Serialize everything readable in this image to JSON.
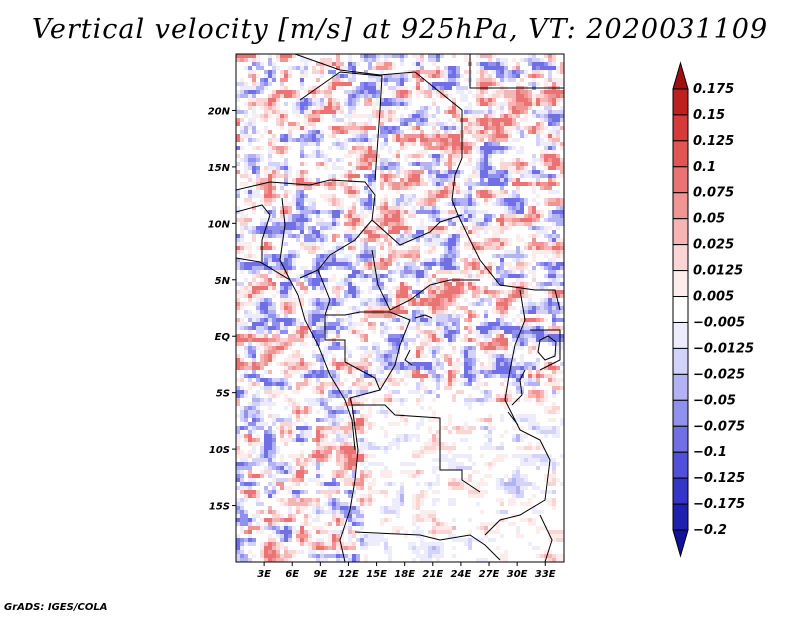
{
  "title": "Vertical velocity [m/s] at 925hPa, VT: 2020031109",
  "credit": "GrADS: IGES/COLA",
  "map": {
    "lon_range": [
      0,
      35
    ],
    "lat_range": [
      -20,
      25
    ],
    "x_ticks": [
      {
        "lon": 3,
        "label": "3E"
      },
      {
        "lon": 6,
        "label": "6E"
      },
      {
        "lon": 9,
        "label": "9E"
      },
      {
        "lon": 12,
        "label": "12E"
      },
      {
        "lon": 15,
        "label": "15E"
      },
      {
        "lon": 18,
        "label": "18E"
      },
      {
        "lon": 21,
        "label": "21E"
      },
      {
        "lon": 24,
        "label": "24E"
      },
      {
        "lon": 27,
        "label": "27E"
      },
      {
        "lon": 30,
        "label": "30E"
      },
      {
        "lon": 33,
        "label": "33E"
      }
    ],
    "y_ticks": [
      {
        "lat": 20,
        "label": "20N"
      },
      {
        "lat": 15,
        "label": "15N"
      },
      {
        "lat": 10,
        "label": "10N"
      },
      {
        "lat": 5,
        "label": "5N"
      },
      {
        "lat": 0,
        "label": "EQ"
      },
      {
        "lat": -5,
        "label": "5S"
      },
      {
        "lat": -10,
        "label": "10S"
      },
      {
        "lat": -15,
        "label": "15S"
      }
    ]
  },
  "colorbar": {
    "labels": [
      "0.175",
      "0.15",
      "0.125",
      "0.1",
      "0.075",
      "0.05",
      "0.025",
      "0.0125",
      "0.005",
      "−0.005",
      "−0.0125",
      "−0.025",
      "−0.05",
      "−0.075",
      "−0.1",
      "−0.125",
      "−0.175",
      "−0.2"
    ],
    "colors": [
      "#a01010",
      "#be1f1f",
      "#d63a3a",
      "#e25555",
      "#ea7474",
      "#f09494",
      "#f6b4b4",
      "#fbd4d4",
      "#fdecec",
      "#ffffff",
      "#ececfd",
      "#d2d2fb",
      "#b2b2f5",
      "#9090ee",
      "#7070e4",
      "#5050d8",
      "#3535c8",
      "#2020b0",
      "#11119a"
    ]
  }
}
